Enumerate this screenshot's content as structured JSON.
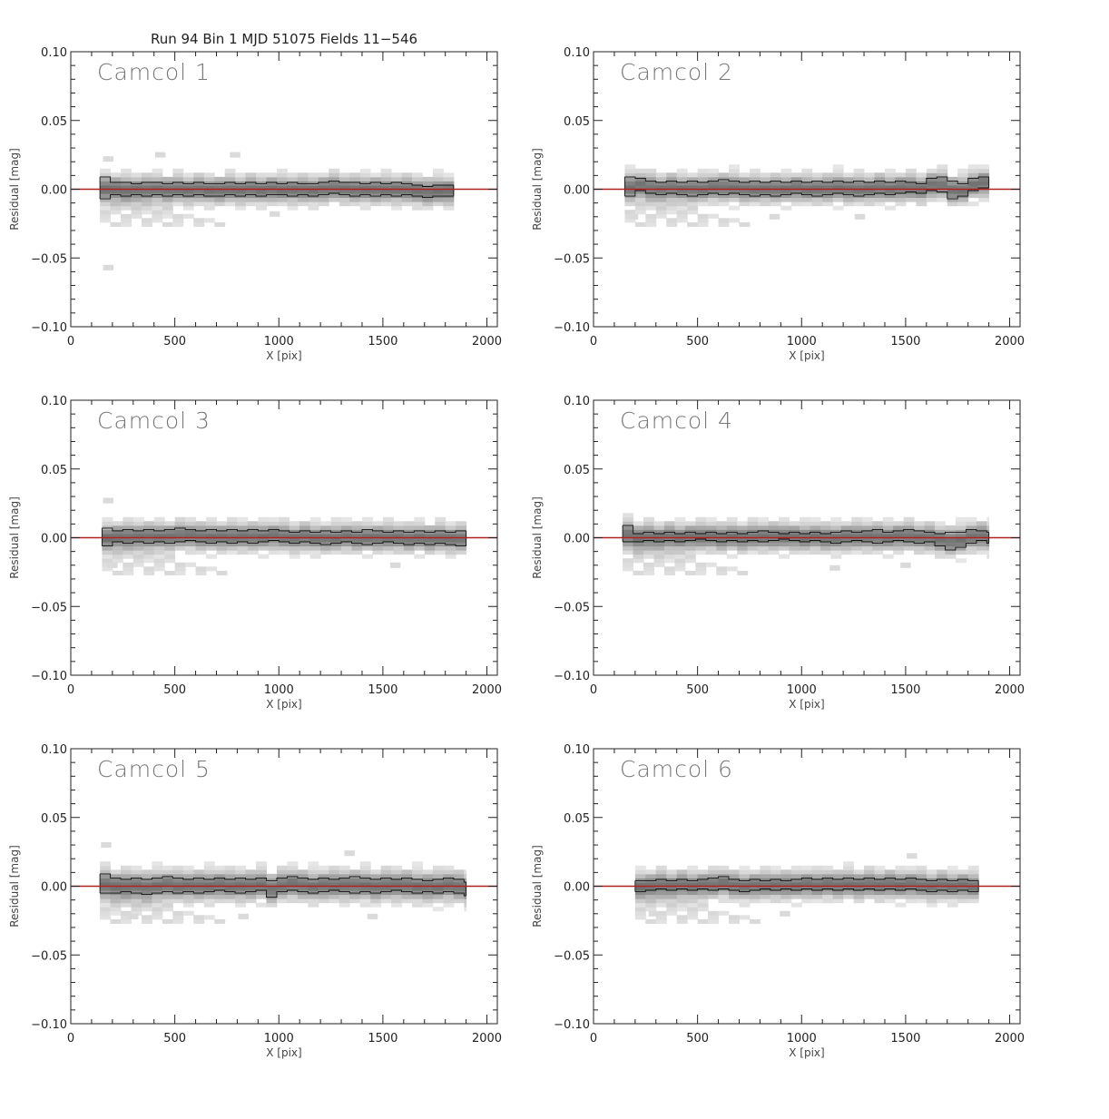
{
  "suptitle": "Run 94 Bin 1  MJD 51075  Fields 11−546",
  "colors": {
    "zero_line": "#b32020",
    "band_outline": "#111111",
    "density_light": "#ececec",
    "density_dark": "#5a5a5a"
  },
  "chart_data": [
    {
      "type": "heatmap",
      "title": "Camcol 1",
      "xlabel": "X [pix]",
      "ylabel": "Residual [mag]",
      "xlim": [
        0,
        2050
      ],
      "ylim": [
        -0.1,
        0.1
      ],
      "xticks": [
        0,
        500,
        1000,
        1500,
        2000
      ],
      "xtick_labels": [
        "0",
        "500",
        "1000",
        "1500",
        "2000"
      ],
      "yticks": [
        -0.1,
        -0.05,
        0.0,
        0.05,
        0.1
      ],
      "ytick_labels": [
        "−0.10",
        "−0.05",
        "0.00",
        "0.05",
        "0.10"
      ],
      "x_start": 140,
      "x_end": 1840,
      "bin_width": 50,
      "zero_line": 0.0,
      "spread": 0.011,
      "upper": [
        0.009,
        0.005,
        0.005,
        0.004,
        0.005,
        0.005,
        0.004,
        0.005,
        0.004,
        0.005,
        0.004,
        0.004,
        0.005,
        0.004,
        0.005,
        0.004,
        0.005,
        0.004,
        0.005,
        0.004,
        0.004,
        0.005,
        0.006,
        0.005,
        0.005,
        0.004,
        0.005,
        0.004,
        0.005,
        0.004,
        0.003,
        0.002,
        0.003,
        0.003
      ],
      "lower": [
        -0.007,
        -0.004,
        -0.005,
        -0.004,
        -0.005,
        -0.004,
        -0.005,
        -0.004,
        -0.005,
        -0.004,
        -0.005,
        -0.005,
        -0.004,
        -0.005,
        -0.004,
        -0.005,
        -0.004,
        -0.004,
        -0.005,
        -0.004,
        -0.005,
        -0.004,
        -0.003,
        -0.004,
        -0.005,
        -0.004,
        -0.005,
        -0.004,
        -0.005,
        -0.004,
        -0.005,
        -0.006,
        -0.005,
        -0.005
      ],
      "outliers": [
        {
          "x": 180,
          "y": -0.057
        },
        {
          "x": 180,
          "y": 0.022
        },
        {
          "x": 430,
          "y": 0.025
        },
        {
          "x": 790,
          "y": 0.025
        },
        {
          "x": 980,
          "y": -0.018
        }
      ]
    },
    {
      "type": "heatmap",
      "title": "Camcol 2",
      "xlabel": "X [pix]",
      "ylabel": "Residual [mag]",
      "xlim": [
        0,
        2050
      ],
      "ylim": [
        -0.1,
        0.1
      ],
      "xticks": [
        0,
        500,
        1000,
        1500,
        2000
      ],
      "xtick_labels": [
        "0",
        "500",
        "1000",
        "1500",
        "2000"
      ],
      "yticks": [
        -0.1,
        -0.05,
        0.0,
        0.05,
        0.1
      ],
      "ytick_labels": [
        "−0.10",
        "−0.05",
        "0.00",
        "0.05",
        "0.10"
      ],
      "x_start": 150,
      "x_end": 1900,
      "bin_width": 50,
      "zero_line": 0.0,
      "spread": 0.011,
      "upper": [
        0.009,
        0.008,
        0.006,
        0.005,
        0.006,
        0.005,
        0.006,
        0.005,
        0.006,
        0.007,
        0.006,
        0.005,
        0.006,
        0.005,
        0.006,
        0.005,
        0.006,
        0.005,
        0.006,
        0.005,
        0.006,
        0.005,
        0.006,
        0.005,
        0.006,
        0.005,
        0.006,
        0.005,
        0.004,
        0.008,
        0.009,
        0.006,
        0.004,
        0.008,
        0.009
      ],
      "lower": [
        -0.005,
        -0.001,
        -0.003,
        -0.004,
        -0.003,
        -0.004,
        -0.005,
        -0.004,
        -0.003,
        -0.004,
        -0.003,
        -0.004,
        -0.005,
        -0.004,
        -0.005,
        -0.004,
        -0.003,
        -0.004,
        -0.005,
        -0.004,
        -0.003,
        -0.004,
        -0.005,
        -0.004,
        -0.003,
        -0.004,
        -0.003,
        -0.002,
        -0.003,
        -0.001,
        -0.002,
        -0.007,
        -0.005,
        -0.001,
        0.001
      ],
      "outliers": [
        {
          "x": 870,
          "y": -0.02
        },
        {
          "x": 1280,
          "y": -0.02
        },
        {
          "x": 190,
          "y": -0.02
        }
      ]
    },
    {
      "type": "heatmap",
      "title": "Camcol 3",
      "xlabel": "X [pix]",
      "ylabel": "Residual [mag]",
      "xlim": [
        0,
        2050
      ],
      "ylim": [
        -0.1,
        0.1
      ],
      "xticks": [
        0,
        500,
        1000,
        1500,
        2000
      ],
      "xtick_labels": [
        "0",
        "500",
        "1000",
        "1500",
        "2000"
      ],
      "yticks": [
        -0.1,
        -0.05,
        0.0,
        0.05,
        0.1
      ],
      "ytick_labels": [
        "−0.10",
        "−0.05",
        "0.00",
        "0.05",
        "0.10"
      ],
      "x_start": 150,
      "x_end": 1900,
      "bin_width": 50,
      "zero_line": 0.0,
      "spread": 0.011,
      "upper": [
        0.007,
        0.005,
        0.006,
        0.005,
        0.006,
        0.005,
        0.006,
        0.007,
        0.006,
        0.005,
        0.006,
        0.005,
        0.006,
        0.005,
        0.006,
        0.005,
        0.006,
        0.005,
        0.004,
        0.005,
        0.004,
        0.005,
        0.004,
        0.005,
        0.004,
        0.006,
        0.005,
        0.004,
        0.005,
        0.004,
        0.005,
        0.004,
        0.005,
        0.004,
        0.005
      ],
      "lower": [
        -0.006,
        -0.003,
        -0.004,
        -0.003,
        -0.004,
        -0.003,
        -0.004,
        -0.003,
        -0.002,
        -0.003,
        -0.004,
        -0.003,
        -0.004,
        -0.003,
        -0.004,
        -0.003,
        -0.002,
        -0.003,
        -0.004,
        -0.003,
        -0.004,
        -0.005,
        -0.004,
        -0.003,
        -0.004,
        -0.005,
        -0.004,
        -0.003,
        -0.004,
        -0.005,
        -0.004,
        -0.005,
        -0.004,
        -0.005,
        -0.006
      ],
      "outliers": [
        {
          "x": 180,
          "y": 0.027
        },
        {
          "x": 200,
          "y": -0.02
        },
        {
          "x": 1560,
          "y": -0.02
        }
      ]
    },
    {
      "type": "heatmap",
      "title": "Camcol 4",
      "xlabel": "X [pix]",
      "ylabel": "Residual [mag]",
      "xlim": [
        0,
        2050
      ],
      "ylim": [
        -0.1,
        0.1
      ],
      "xticks": [
        0,
        500,
        1000,
        1500,
        2000
      ],
      "xtick_labels": [
        "0",
        "500",
        "1000",
        "1500",
        "2000"
      ],
      "yticks": [
        -0.1,
        -0.05,
        0.0,
        0.05,
        0.1
      ],
      "ytick_labels": [
        "−0.10",
        "−0.05",
        "0.00",
        "0.05",
        "0.10"
      ],
      "x_start": 140,
      "x_end": 1900,
      "bin_width": 50,
      "zero_line": 0.0,
      "spread": 0.011,
      "upper": [
        0.009,
        0.003,
        0.004,
        0.003,
        0.004,
        0.003,
        0.004,
        0.003,
        0.004,
        0.003,
        0.004,
        0.003,
        0.004,
        0.005,
        0.004,
        0.003,
        0.004,
        0.003,
        0.004,
        0.003,
        0.004,
        0.005,
        0.004,
        0.005,
        0.006,
        0.004,
        0.005,
        0.006,
        0.005,
        0.004,
        0.003,
        0.004,
        0.004,
        0.006,
        0.005,
        0.004
      ],
      "lower": [
        -0.003,
        -0.003,
        -0.002,
        -0.003,
        -0.002,
        -0.003,
        -0.002,
        -0.001,
        -0.002,
        -0.003,
        -0.002,
        -0.003,
        -0.002,
        -0.003,
        -0.002,
        -0.001,
        -0.002,
        -0.003,
        -0.002,
        -0.003,
        -0.004,
        -0.003,
        -0.002,
        -0.003,
        -0.004,
        -0.003,
        -0.002,
        -0.003,
        -0.004,
        -0.003,
        -0.006,
        -0.009,
        -0.007,
        -0.004,
        -0.002,
        -0.004
      ],
      "outliers": [
        {
          "x": 1160,
          "y": -0.022
        },
        {
          "x": 1500,
          "y": -0.02
        }
      ]
    },
    {
      "type": "heatmap",
      "title": "Camcol 5",
      "xlabel": "X [pix]",
      "ylabel": "Residual [mag]",
      "xlim": [
        0,
        2050
      ],
      "ylim": [
        -0.1,
        0.1
      ],
      "xticks": [
        0,
        500,
        1000,
        1500,
        2000
      ],
      "xtick_labels": [
        "0",
        "500",
        "1000",
        "1500",
        "2000"
      ],
      "yticks": [
        -0.1,
        -0.05,
        0.0,
        0.05,
        0.1
      ],
      "ytick_labels": [
        "−0.10",
        "−0.05",
        "0.00",
        "0.05",
        "0.10"
      ],
      "x_start": 140,
      "x_end": 1900,
      "bin_width": 50,
      "zero_line": 0.0,
      "spread": 0.012,
      "upper": [
        0.009,
        0.006,
        0.005,
        0.006,
        0.005,
        0.006,
        0.007,
        0.006,
        0.005,
        0.006,
        0.005,
        0.006,
        0.005,
        0.006,
        0.005,
        0.006,
        0.004,
        0.006,
        0.007,
        0.006,
        0.005,
        0.006,
        0.005,
        0.006,
        0.007,
        0.006,
        0.005,
        0.006,
        0.005,
        0.006,
        0.005,
        0.004,
        0.005,
        0.006,
        0.005,
        0.003
      ],
      "lower": [
        -0.005,
        -0.005,
        -0.004,
        -0.005,
        -0.006,
        -0.005,
        -0.004,
        -0.005,
        -0.004,
        -0.005,
        -0.004,
        -0.003,
        -0.004,
        -0.005,
        -0.004,
        -0.003,
        -0.008,
        -0.004,
        -0.003,
        -0.004,
        -0.005,
        -0.004,
        -0.003,
        -0.004,
        -0.005,
        -0.004,
        -0.005,
        -0.004,
        -0.003,
        -0.004,
        -0.005,
        -0.004,
        -0.005,
        -0.004,
        -0.005,
        -0.007
      ],
      "outliers": [
        {
          "x": 170,
          "y": 0.03
        },
        {
          "x": 1340,
          "y": 0.024
        },
        {
          "x": 830,
          "y": -0.022
        },
        {
          "x": 1450,
          "y": -0.022
        },
        {
          "x": 300,
          "y": -0.022
        }
      ]
    },
    {
      "type": "heatmap",
      "title": "Camcol 6",
      "xlabel": "X [pix]",
      "ylabel": "Residual [mag]",
      "xlim": [
        0,
        2050
      ],
      "ylim": [
        -0.1,
        0.1
      ],
      "xticks": [
        0,
        500,
        1000,
        1500,
        2000
      ],
      "xtick_labels": [
        "0",
        "500",
        "1000",
        "1500",
        "2000"
      ],
      "yticks": [
        -0.1,
        -0.05,
        0.0,
        0.05,
        0.1
      ],
      "ytick_labels": [
        "−0.10",
        "−0.05",
        "0.00",
        "0.05",
        "0.10"
      ],
      "x_start": 200,
      "x_end": 1850,
      "bin_width": 50,
      "zero_line": 0.0,
      "spread": 0.011,
      "upper": [
        0.004,
        0.004,
        0.005,
        0.004,
        0.005,
        0.004,
        0.005,
        0.006,
        0.007,
        0.005,
        0.004,
        0.005,
        0.004,
        0.005,
        0.004,
        0.005,
        0.006,
        0.005,
        0.006,
        0.005,
        0.006,
        0.005,
        0.006,
        0.005,
        0.006,
        0.005,
        0.006,
        0.005,
        0.004,
        0.005,
        0.004,
        0.005,
        0.004
      ],
      "lower": [
        -0.004,
        -0.003,
        -0.002,
        -0.003,
        -0.002,
        -0.003,
        -0.002,
        -0.003,
        -0.002,
        -0.003,
        -0.004,
        -0.003,
        -0.002,
        -0.003,
        -0.002,
        -0.003,
        -0.002,
        -0.003,
        -0.002,
        -0.003,
        -0.002,
        -0.003,
        -0.002,
        -0.003,
        -0.002,
        -0.003,
        -0.002,
        -0.003,
        -0.004,
        -0.003,
        -0.004,
        -0.003,
        -0.004
      ],
      "outliers": [
        {
          "x": 290,
          "y": -0.02
        },
        {
          "x": 1530,
          "y": 0.022
        },
        {
          "x": 920,
          "y": -0.02
        }
      ]
    }
  ]
}
